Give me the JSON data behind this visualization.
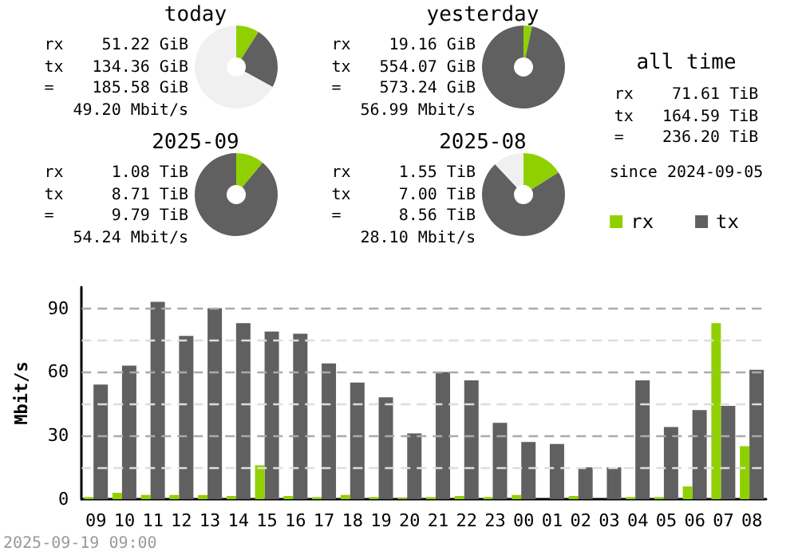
{
  "chart_data": [
    {
      "type": "donut",
      "title": "today",
      "categories": [
        null,
        null,
        null
      ],
      "values": [
        9,
        24,
        67
      ],
      "colors": [
        "#90d000",
        "#606060",
        "#f0f0f0"
      ],
      "annotations": [
        "rx    51.22 GiB",
        "tx   134.36 GiB",
        "=    185.58 GiB",
        "49.20 Mbit/s"
      ]
    },
    {
      "type": "donut",
      "title": "yesterday",
      "categories": [
        null,
        null
      ],
      "values": [
        3.3,
        96.7
      ],
      "colors": [
        "#90d000",
        "#606060"
      ],
      "annotations": [
        "rx    19.16 GiB",
        "tx   554.07 GiB",
        "=    573.24 GiB",
        "56.99 Mbit/s"
      ]
    },
    {
      "type": "donut",
      "title": "2025-09",
      "categories": [
        null,
        null
      ],
      "values": [
        11,
        89
      ],
      "colors": [
        "#90d000",
        "#606060"
      ],
      "annotations": [
        "rx     1.08 TiB",
        "tx     8.71 TiB",
        "=      9.79 TiB",
        "54.24 Mbit/s"
      ]
    },
    {
      "type": "donut",
      "title": "2025-08",
      "categories": [
        null,
        null,
        null
      ],
      "values": [
        16,
        72,
        12
      ],
      "colors": [
        "#90d000",
        "#606060",
        "#f0f0f0"
      ],
      "annotations": [
        "rx     1.55 TiB",
        "tx     7.00 TiB",
        "=      8.56 TiB",
        "28.10 Mbit/s"
      ]
    },
    {
      "type": "other",
      "title": "all time",
      "annotations": [
        "rx    71.61 TiB",
        "tx   164.59 TiB",
        "=    236.20 TiB",
        "since 2024-09-05"
      ]
    },
    {
      "type": "bar",
      "ylabel": "Mbit/s",
      "legend": "top right",
      "grid": "y",
      "categories": [
        "09",
        "10",
        "11",
        "12",
        "13",
        "14",
        "15",
        "16",
        "17",
        "18",
        "19",
        "20",
        "21",
        "22",
        "23",
        "00",
        "01",
        "02",
        "03",
        "04",
        "05",
        "06",
        "07",
        "08"
      ],
      "series": [
        {
          "name": "rx",
          "color": "#90d000",
          "values": [
            1,
            3,
            2,
            2,
            2,
            1.5,
            16,
            1.5,
            1,
            2,
            1,
            0.5,
            1,
            1.5,
            1,
            2,
            0,
            1.5,
            0,
            1,
            1,
            6,
            83,
            25
          ]
        },
        {
          "name": "tx",
          "color": "#606060",
          "values": [
            54,
            63,
            93,
            77,
            90,
            83,
            79,
            78,
            64,
            55,
            48,
            31,
            60,
            56,
            36,
            27,
            26,
            15,
            15,
            56,
            34,
            42,
            44,
            61
          ]
        }
      ],
      "ylim": [
        0,
        100
      ],
      "yticks": [
        0,
        {
          "value": 15,
          "label": null
        },
        30,
        {
          "value": 45,
          "label": null
        },
        60,
        {
          "value": 75,
          "label": null
        },
        90
      ],
      "annotations": [
        "2025-09-19 09:00"
      ]
    }
  ]
}
